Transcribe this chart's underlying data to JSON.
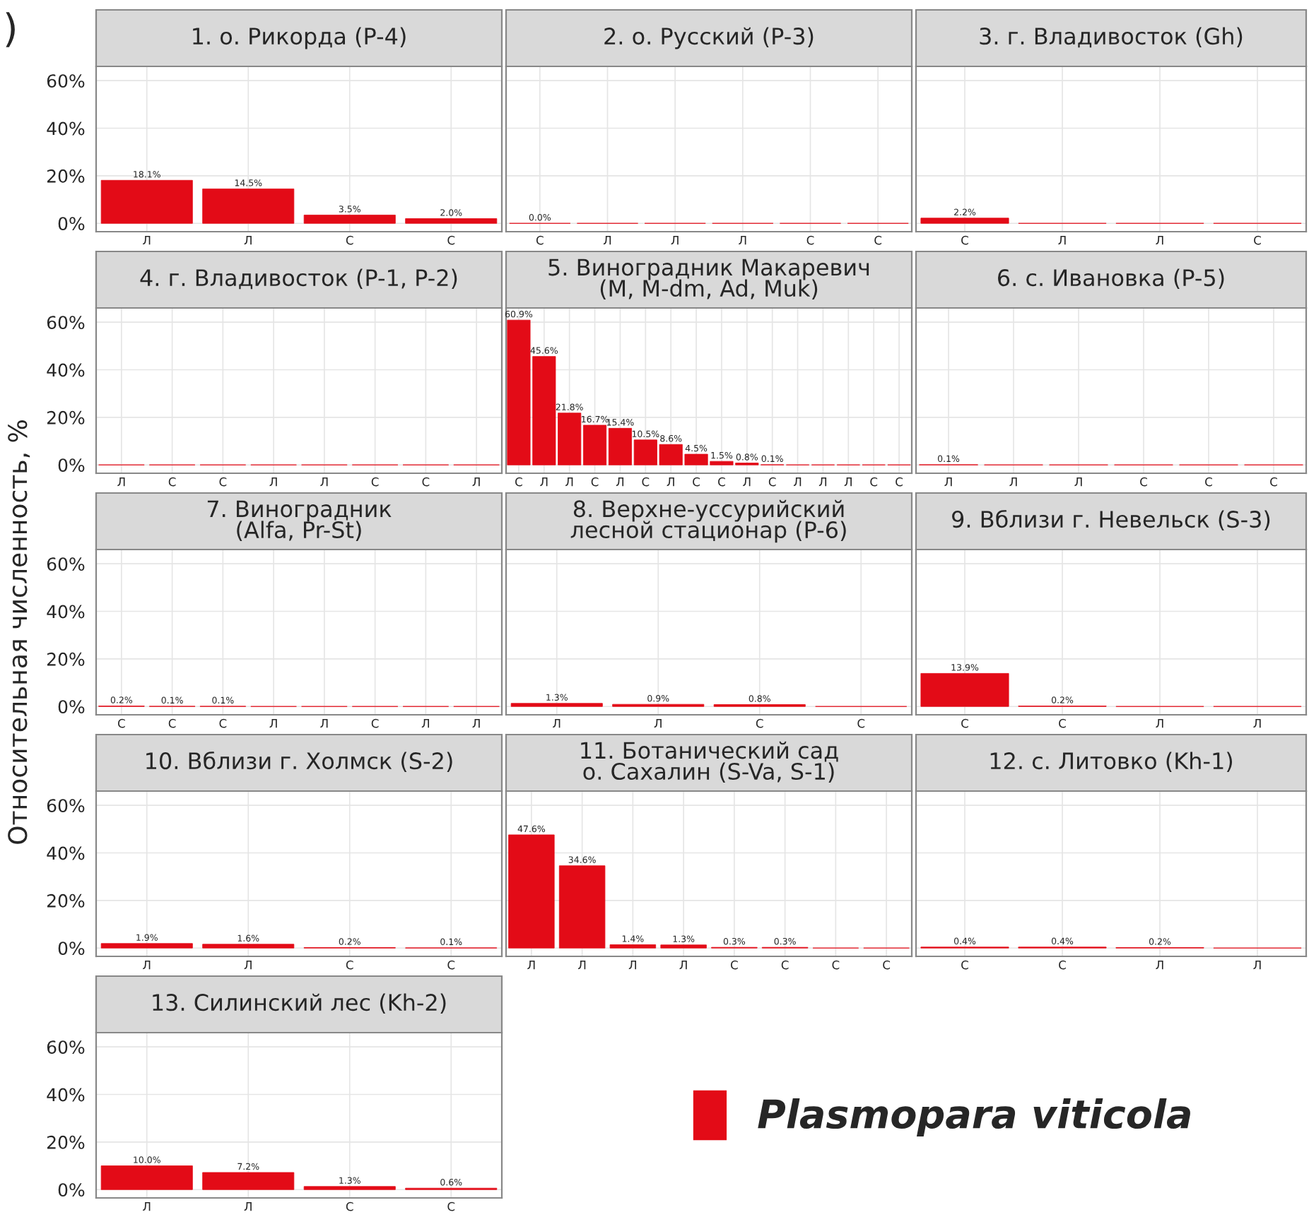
{
  "chart_data": [
    {
      "type": "bar",
      "title": "1. о. Рикорда (P-4)",
      "categories": [
        "Л",
        "Л",
        "С",
        "С"
      ],
      "series": [
        {
          "color": "#e30b17",
          "values": [
            18.1,
            14.5,
            3.5,
            2.0
          ]
        }
      ],
      "value_labels": [
        "18.1%",
        "14.5%",
        "3.5%",
        "2.0%"
      ],
      "ylim": [
        -3.5,
        66
      ],
      "yticks": [
        {
          "value": 0,
          "label": "0%"
        },
        {
          "value": 20,
          "label": "20%"
        },
        {
          "value": 40,
          "label": "40%"
        },
        {
          "value": 60,
          "label": "60%"
        }
      ],
      "grid": true,
      "annotations": [
        ")"
      ]
    },
    {
      "type": "bar",
      "title": "2. о. Русский (P-3)",
      "categories": [
        "С",
        "Л",
        "Л",
        "Л",
        "С",
        "С"
      ],
      "series": [
        {
          "color": "#e30b17",
          "values": [
            0.0,
            0,
            0,
            0,
            0,
            0
          ]
        }
      ],
      "value_labels": [
        "0.0%",
        null,
        null,
        null,
        null,
        null
      ],
      "ylim": [
        -3.5,
        66
      ],
      "yticks": [
        {
          "value": 0,
          "label": null
        },
        {
          "value": 20,
          "label": null
        },
        {
          "value": 40,
          "label": null
        },
        {
          "value": 60,
          "label": null
        }
      ],
      "grid": true,
      "tick_labels": "x"
    },
    {
      "type": "bar",
      "title": "3. г. Владивосток (Gh)",
      "categories": [
        "С",
        "Л",
        "Л",
        "С"
      ],
      "series": [
        {
          "color": "#e30b17",
          "values": [
            2.2,
            0,
            0,
            0
          ]
        }
      ],
      "value_labels": [
        "2.2%",
        null,
        null,
        null
      ],
      "ylim": [
        -3.5,
        66
      ],
      "yticks": [
        {
          "value": 0,
          "label": null
        },
        {
          "value": 20,
          "label": null
        },
        {
          "value": 40,
          "label": null
        },
        {
          "value": 60,
          "label": null
        }
      ],
      "grid": true,
      "tick_labels": "x"
    },
    {
      "type": "bar",
      "title": "4. г. Владивосток (P-1, P-2)",
      "categories": [
        "Л",
        "С",
        "С",
        "Л",
        "Л",
        "С",
        "С",
        "Л"
      ],
      "series": [
        {
          "color": "#e30b17",
          "values": [
            0,
            0,
            0,
            0,
            0,
            0,
            0,
            0
          ]
        }
      ],
      "value_labels": [
        null,
        null,
        null,
        null,
        null,
        null,
        null,
        null
      ],
      "ylim": [
        -3.5,
        66
      ],
      "yticks": [
        {
          "value": 0,
          "label": "0%"
        },
        {
          "value": 20,
          "label": "20%"
        },
        {
          "value": 40,
          "label": "40%"
        },
        {
          "value": 60,
          "label": "60%"
        }
      ],
      "grid": true
    },
    {
      "type": "bar",
      "title": "5. Виноградник Макаревич\n(M, M-dm, Ad, Muk)",
      "categories": [
        "С",
        "Л",
        "Л",
        "С",
        "Л",
        "С",
        "Л",
        "С",
        "С",
        "Л",
        "С",
        "Л",
        "Л",
        "Л",
        "С",
        "С"
      ],
      "series": [
        {
          "color": "#e30b17",
          "values": [
            60.9,
            45.6,
            21.8,
            16.7,
            15.4,
            10.5,
            8.6,
            4.5,
            1.5,
            0.8,
            0.1,
            0,
            0,
            0,
            0,
            0
          ]
        }
      ],
      "value_labels": [
        "60.9%",
        "45.6%",
        "21.8%",
        "16.7%",
        "15.4%",
        "10.5%",
        "8.6%",
        "4.5%",
        "1.5%",
        "0.8%",
        "0.1%",
        null,
        null,
        null,
        null,
        null
      ],
      "ylim": [
        -3.5,
        66
      ],
      "yticks": [
        {
          "value": 0,
          "label": null
        },
        {
          "value": 20,
          "label": null
        },
        {
          "value": 40,
          "label": null
        },
        {
          "value": 60,
          "label": null
        }
      ],
      "grid": true,
      "tick_labels": "x"
    },
    {
      "type": "bar",
      "title": "6. с. Ивановка (P-5)",
      "categories": [
        "Л",
        "Л",
        "Л",
        "С",
        "С",
        "С"
      ],
      "series": [
        {
          "color": "#e30b17",
          "values": [
            0.1,
            0,
            0,
            0,
            0,
            0
          ]
        }
      ],
      "value_labels": [
        "0.1%",
        null,
        null,
        null,
        null,
        null
      ],
      "ylim": [
        -3.5,
        66
      ],
      "yticks": [
        {
          "value": 0,
          "label": null
        },
        {
          "value": 20,
          "label": null
        },
        {
          "value": 40,
          "label": null
        },
        {
          "value": 60,
          "label": null
        }
      ],
      "grid": true,
      "tick_labels": "x"
    },
    {
      "type": "bar",
      "title": "7. Виноградник\n(Alfa, Pr-St)",
      "ylabel": "Относительная численность, %",
      "categories": [
        "С",
        "С",
        "С",
        "Л",
        "Л",
        "С",
        "Л",
        "Л"
      ],
      "series": [
        {
          "color": "#e30b17",
          "values": [
            0.2,
            0.1,
            0.1,
            0,
            0,
            0,
            0,
            0
          ]
        }
      ],
      "value_labels": [
        "0.2%",
        "0.1%",
        "0.1%",
        null,
        null,
        null,
        null,
        null
      ],
      "ylim": [
        -3.5,
        66
      ],
      "yticks": [
        {
          "value": 0,
          "label": "0%"
        },
        {
          "value": 20,
          "label": "20%"
        },
        {
          "value": 40,
          "label": "40%"
        },
        {
          "value": 60,
          "label": "60%"
        }
      ],
      "grid": true
    },
    {
      "type": "bar",
      "title": "8. Верхне-уссурийский\nлесной стационар (P-6)",
      "categories": [
        "Л",
        "Л",
        "С",
        "С"
      ],
      "series": [
        {
          "color": "#e30b17",
          "values": [
            1.3,
            0.9,
            0.8,
            0
          ]
        }
      ],
      "value_labels": [
        "1.3%",
        "0.9%",
        "0.8%",
        null
      ],
      "ylim": [
        -3.5,
        66
      ],
      "yticks": [
        {
          "value": 0,
          "label": null
        },
        {
          "value": 20,
          "label": null
        },
        {
          "value": 40,
          "label": null
        },
        {
          "value": 60,
          "label": null
        }
      ],
      "grid": true,
      "tick_labels": "x"
    },
    {
      "type": "bar",
      "title": "9. Вблизи г. Невельск (S-3)",
      "categories": [
        "С",
        "С",
        "Л",
        "Л"
      ],
      "series": [
        {
          "color": "#e30b17",
          "values": [
            13.9,
            0.2,
            0,
            0
          ]
        }
      ],
      "value_labels": [
        "13.9%",
        "0.2%",
        null,
        null
      ],
      "ylim": [
        -3.5,
        66
      ],
      "yticks": [
        {
          "value": 0,
          "label": null
        },
        {
          "value": 20,
          "label": null
        },
        {
          "value": 40,
          "label": null
        },
        {
          "value": 60,
          "label": null
        }
      ],
      "grid": true,
      "tick_labels": "x"
    },
    {
      "type": "bar",
      "title": "10. Вблизи г. Холмск (S-2)",
      "categories": [
        "Л",
        "Л",
        "С",
        "С"
      ],
      "series": [
        {
          "color": "#e30b17",
          "values": [
            1.9,
            1.6,
            0.2,
            0.1
          ]
        }
      ],
      "value_labels": [
        "1.9%",
        "1.6%",
        "0.2%",
        "0.1%"
      ],
      "ylim": [
        -3.5,
        66
      ],
      "yticks": [
        {
          "value": 0,
          "label": "0%"
        },
        {
          "value": 20,
          "label": "20%"
        },
        {
          "value": 40,
          "label": "40%"
        },
        {
          "value": 60,
          "label": "60%"
        }
      ],
      "grid": true
    },
    {
      "type": "bar",
      "title": "11. Ботанический сад\nо. Сахалин (S-Va, S-1)",
      "categories": [
        "Л",
        "Л",
        "Л",
        "Л",
        "С",
        "С",
        "С",
        "С"
      ],
      "series": [
        {
          "color": "#e30b17",
          "values": [
            47.6,
            34.6,
            1.4,
            1.3,
            0.3,
            0.3,
            0,
            0
          ]
        }
      ],
      "value_labels": [
        "47.6%",
        "34.6%",
        "1.4%",
        "1.3%",
        "0.3%",
        "0.3%",
        null,
        null
      ],
      "ylim": [
        -3.5,
        66
      ],
      "yticks": [
        {
          "value": 0,
          "label": null
        },
        {
          "value": 20,
          "label": null
        },
        {
          "value": 40,
          "label": null
        },
        {
          "value": 60,
          "label": null
        }
      ],
      "grid": true,
      "tick_labels": "x"
    },
    {
      "type": "bar",
      "title": "12. с. Литовко (Kh-1)",
      "categories": [
        "С",
        "С",
        "Л",
        "Л"
      ],
      "series": [
        {
          "color": "#e30b17",
          "values": [
            0.4,
            0.4,
            0.2,
            0
          ]
        }
      ],
      "value_labels": [
        "0.4%",
        "0.4%",
        "0.2%",
        null
      ],
      "ylim": [
        -3.5,
        66
      ],
      "yticks": [
        {
          "value": 0,
          "label": null
        },
        {
          "value": 20,
          "label": null
        },
        {
          "value": 40,
          "label": null
        },
        {
          "value": 60,
          "label": null
        }
      ],
      "grid": true,
      "tick_labels": "x"
    },
    {
      "type": "bar",
      "title": "13. Силинский лес (Kh-2)",
      "categories": [
        "Л",
        "Л",
        "С",
        "С"
      ],
      "series": [
        {
          "name": "Plasmopara viticola",
          "color": "#e30b17",
          "values": [
            10.0,
            7.2,
            1.3,
            0.6
          ]
        }
      ],
      "value_labels": [
        "10.0%",
        "7.2%",
        "1.3%",
        "0.6%"
      ],
      "ylim": [
        -3.5,
        66
      ],
      "yticks": [
        {
          "value": 0,
          "label": "0%"
        },
        {
          "value": 20,
          "label": "20%"
        },
        {
          "value": 40,
          "label": "40%"
        },
        {
          "value": 60,
          "label": "60%"
        }
      ],
      "grid": true,
      "legend": "right"
    }
  ]
}
